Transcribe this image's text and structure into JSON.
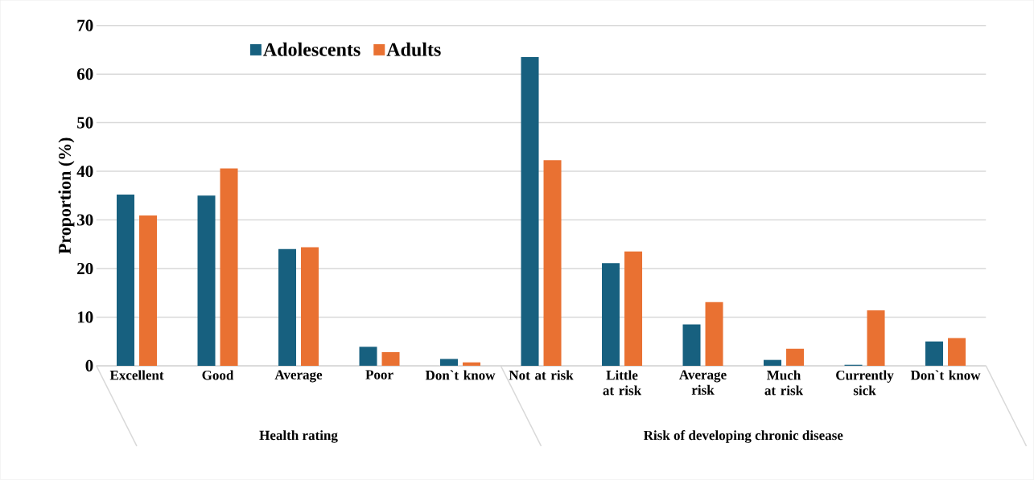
{
  "chart_data": {
    "type": "bar",
    "ylabel": "Proportion (%)",
    "categories": [
      "Excellent",
      "Good",
      "Average",
      "Poor",
      "Don`t know",
      "Not at risk",
      "Little at risk",
      "Average risk",
      "Much at risk",
      "Currently sick",
      "Don`t know"
    ],
    "series": [
      {
        "name": "Adolescents",
        "color": "#17607f",
        "values": [
          35.2,
          35.0,
          24.0,
          3.9,
          1.4,
          63.5,
          21.1,
          8.5,
          1.2,
          0.2,
          5.0
        ]
      },
      {
        "name": "Adults",
        "color": "#e97132",
        "values": [
          30.9,
          40.6,
          24.4,
          2.8,
          0.7,
          42.3,
          23.5,
          13.1,
          3.5,
          11.4,
          5.7
        ]
      }
    ],
    "ylim": [
      0,
      70
    ],
    "yticks": [
      0,
      10,
      20,
      30,
      40,
      50,
      60,
      70
    ],
    "grid": "y",
    "legend": "top",
    "annotations": [
      "Health rating",
      "Risk of developing chronic disease"
    ]
  }
}
